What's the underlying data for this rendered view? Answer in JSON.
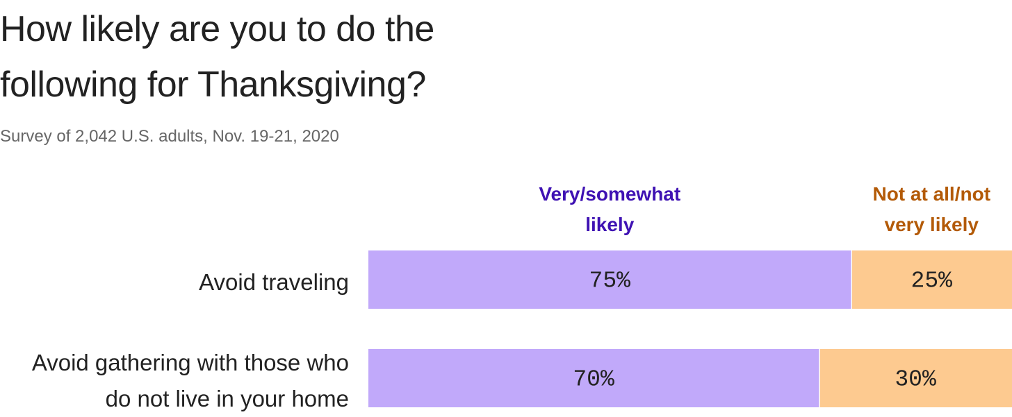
{
  "chart_data": {
    "type": "stacked-bar",
    "title": "How likely are you to do the following for Thanksgiving?",
    "subtitle": "Survey of 2,042 U.S. adults, Nov. 19-21, 2020",
    "categories": [
      "Avoid traveling",
      "Avoid gathering with those who do not live in your home"
    ],
    "xlim": [
      0,
      100
    ],
    "series": [
      {
        "name": "Very/somewhat likely",
        "color": "#c1a9fa",
        "label_color": "#3f12b3",
        "values": [
          75,
          70
        ],
        "value_labels": [
          "75%",
          "70%"
        ]
      },
      {
        "name": "Not at all/not very likely",
        "color": "#fdca90",
        "label_color": "#b35a07",
        "values": [
          25,
          30
        ],
        "value_labels": [
          "25%",
          "30%"
        ]
      }
    ]
  }
}
